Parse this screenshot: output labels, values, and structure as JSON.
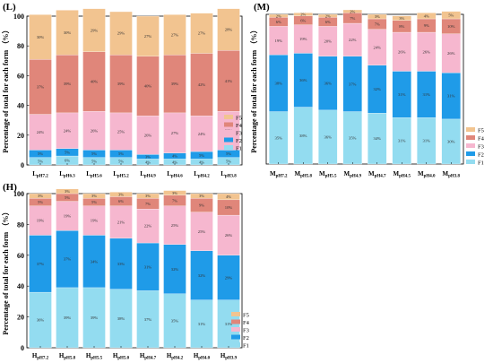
{
  "colors": {
    "F1": "#93dcf0",
    "F2": "#1f9be8",
    "F3": "#f6b7cf",
    "F4": "#e0867a",
    "F5": "#f2c490",
    "accent": "#56d6b2",
    "band": "#68d6c2",
    "mSmall": "#8fd0a6"
  },
  "chart_data": [
    {
      "panel": "L",
      "type": "bar",
      "stacked": true,
      "panel_label": "(L)",
      "ylabel": "Percentage of total for each form  （%）",
      "ylim": [
        0,
        100
      ],
      "yticks": [
        "0",
        "20",
        "40",
        "60",
        "80",
        "100"
      ],
      "legend_position": "right",
      "categories": [
        {
          "main": "L",
          "sub": "pH7.2"
        },
        {
          "main": "L",
          "sub": "pH6.3"
        },
        {
          "main": "L",
          "sub": "pH5.6"
        },
        {
          "main": "L",
          "sub": "pH5.2"
        },
        {
          "main": "L",
          "sub": "pH4.9"
        },
        {
          "main": "L",
          "sub": "pH4.6"
        },
        {
          "main": "L",
          "sub": "pH4.2"
        },
        {
          "main": "L",
          "sub": "pH3.8"
        }
      ],
      "series": [
        {
          "name": "F1",
          "values": [
            5,
            6,
            5,
            5,
            4,
            4,
            4,
            5
          ],
          "labels": [
            "5%",
            "6%",
            "5%",
            "5%",
            "4%",
            "4%",
            "4%",
            "5%"
          ]
        },
        {
          "name": "F2",
          "values": [
            5,
            5,
            5,
            5,
            3,
            4,
            5,
            5
          ],
          "labels": [
            "5%",
            "5%",
            "5%",
            "5%",
            "3%",
            "4%",
            "5%",
            "5%"
          ]
        },
        {
          "name": "F3",
          "values": [
            24,
            24,
            26,
            25,
            26,
            27,
            24,
            26
          ],
          "labels": [
            "24%",
            "24%",
            "26%",
            "25%",
            "26%",
            "27%",
            "24%",
            "26%"
          ]
        },
        {
          "name": "F4",
          "values": [
            37,
            39,
            40,
            39,
            40,
            39,
            42,
            41
          ],
          "labels": [
            "37%",
            "39%",
            "40%",
            "39%",
            "40%",
            "39%",
            "42%",
            "41%"
          ]
        },
        {
          "name": "F5",
          "values": [
            30,
            30,
            29,
            29,
            27,
            27,
            27,
            28
          ],
          "labels": [
            "30%",
            "30%",
            "29%",
            "29%",
            "27%",
            "27%",
            "27%",
            "28%"
          ]
        }
      ]
    },
    {
      "panel": "M",
      "type": "bar",
      "stacked": true,
      "panel_label": "(M)",
      "ylabel": "Percentage of total for each form （%）",
      "ylim": [
        0,
        100
      ],
      "legend_position": "right",
      "categories": [
        {
          "main": "M",
          "sub": "pH7.2"
        },
        {
          "main": "M",
          "sub": "pH5.8"
        },
        {
          "main": "M",
          "sub": "pH5.5"
        },
        {
          "main": "M",
          "sub": "pH4.9"
        },
        {
          "main": "M",
          "sub": "pH4.7"
        },
        {
          "main": "M",
          "sub": "pH4.5"
        },
        {
          "main": "M",
          "sub": "pH4.0"
        },
        {
          "main": "M",
          "sub": "pH3.8"
        }
      ],
      "series": [
        {
          "name": "F1",
          "values": [
            35,
            38,
            36,
            35,
            34,
            31,
            31,
            30
          ],
          "labels": [
            "35%",
            "38%",
            "36%",
            "35%",
            "34%",
            "31%",
            "31%",
            "30%"
          ]
        },
        {
          "name": "F2",
          "values": [
            38,
            36,
            36,
            37,
            32,
            31,
            31,
            31
          ],
          "labels": [
            "38%",
            "36%",
            "36%",
            "37%",
            "32%",
            "31%",
            "31%",
            "31%"
          ]
        },
        {
          "name": "F3",
          "values": [
            19,
            19,
            20,
            22,
            24,
            26,
            26,
            26
          ],
          "labels": [
            "19%",
            "19%",
            "20%",
            "22%",
            "24%",
            "26%",
            "26%",
            "26%"
          ]
        },
        {
          "name": "F4",
          "values": [
            6,
            6,
            6,
            7,
            7,
            8,
            9,
            10
          ],
          "labels": [
            "6%",
            "6%",
            "6%",
            "7%",
            "7%",
            "8%",
            "9%",
            "10%"
          ]
        },
        {
          "name": "F5",
          "values": [
            2,
            2,
            2,
            2,
            3,
            3,
            4,
            5
          ],
          "labels": [
            "2%",
            "2%",
            "2%",
            "2%",
            "3%",
            "3%",
            "4%",
            "5%"
          ]
        }
      ]
    },
    {
      "panel": "H",
      "type": "bar",
      "stacked": true,
      "panel_label": "(H)",
      "ylabel": "Percentage of total for each form  （%）",
      "ylim": [
        0,
        100
      ],
      "yticks": [
        "0",
        "20",
        "40",
        "60",
        "80",
        "100"
      ],
      "legend_position": "bottom-right",
      "categories": [
        {
          "main": "H",
          "sub": "pH7.2"
        },
        {
          "main": "H",
          "sub": "pH5.8"
        },
        {
          "main": "H",
          "sub": "pH5.5"
        },
        {
          "main": "H",
          "sub": "pH5.0"
        },
        {
          "main": "H",
          "sub": "pH4.7"
        },
        {
          "main": "H",
          "sub": "pH4.2"
        },
        {
          "main": "H",
          "sub": "pH4.0"
        },
        {
          "main": "H",
          "sub": "pH3.9"
        }
      ],
      "series": [
        {
          "name": "F1",
          "values": [
            36,
            39,
            39,
            38,
            37,
            35,
            31,
            31
          ],
          "labels": [
            "36%",
            "39%",
            "39%",
            "38%",
            "37%",
            "35%",
            "31%",
            "31%"
          ]
        },
        {
          "name": "F2",
          "values": [
            37,
            37,
            34,
            33,
            31,
            32,
            32,
            29
          ],
          "labels": [
            "37%",
            "37%",
            "34%",
            "33%",
            "31%",
            "32%",
            "32%",
            "29%"
          ]
        },
        {
          "name": "F3",
          "values": [
            19,
            19,
            19,
            21,
            22,
            25,
            25,
            26
          ],
          "labels": [
            "19%",
            "19%",
            "19%",
            "21%",
            "22%",
            "25%",
            "25%",
            "26%"
          ]
        },
        {
          "name": "F4",
          "values": [
            5,
            5,
            5,
            6,
            7,
            7,
            9,
            10
          ],
          "labels": [
            "5%",
            "5%",
            "5%",
            "6%",
            "7%",
            "7%",
            "9%",
            "10%"
          ]
        },
        {
          "name": "F5",
          "values": [
            3,
            3,
            3,
            3,
            3,
            3,
            3,
            4
          ],
          "labels": [
            "3%",
            "3%",
            "3%",
            "3%",
            "3%",
            "3%",
            "3%",
            "4%"
          ]
        }
      ]
    }
  ]
}
